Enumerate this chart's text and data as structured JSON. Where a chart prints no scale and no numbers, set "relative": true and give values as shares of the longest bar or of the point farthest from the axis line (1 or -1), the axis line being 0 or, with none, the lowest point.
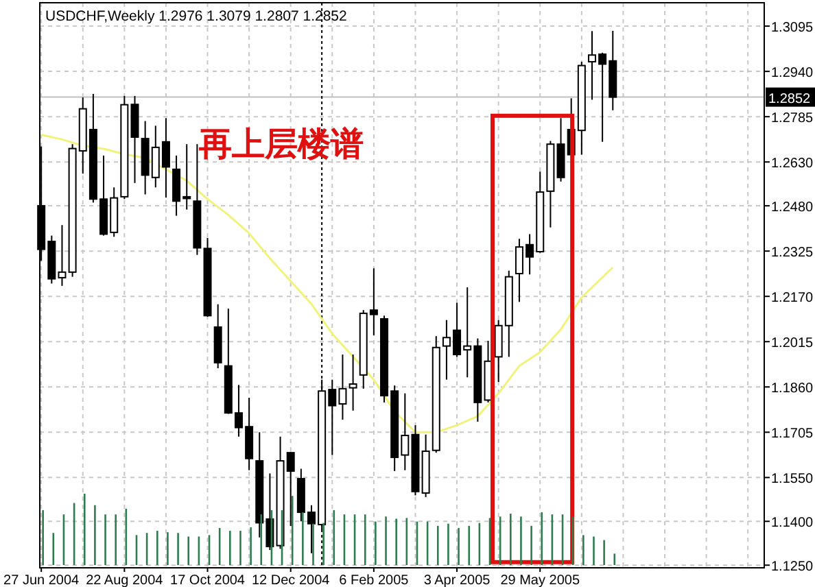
{
  "chart_data": [
    {
      "type": "candlestick",
      "title": "USDCHF,Weekly 1.2976 1.3079 1.2807 1.2852",
      "x": [
        "2004-06-27",
        "2004-07-04",
        "2004-07-11",
        "2004-07-18",
        "2004-07-25",
        "2004-08-01",
        "2004-08-08",
        "2004-08-15",
        "2004-08-22",
        "2004-08-29",
        "2004-09-05",
        "2004-09-12",
        "2004-09-19",
        "2004-09-26",
        "2004-10-03",
        "2004-10-10",
        "2004-10-17",
        "2004-10-24",
        "2004-10-31",
        "2004-11-07",
        "2004-11-14",
        "2004-11-21",
        "2004-11-28",
        "2004-12-05",
        "2004-12-12",
        "2004-12-19",
        "2004-12-26",
        "2005-01-02",
        "2005-01-09",
        "2005-01-16",
        "2005-01-23",
        "2005-01-30",
        "2005-02-06",
        "2005-02-13",
        "2005-02-20",
        "2005-02-27",
        "2005-03-06",
        "2005-03-13",
        "2005-03-20",
        "2005-03-27",
        "2005-04-03",
        "2005-04-10",
        "2005-04-17",
        "2005-04-24",
        "2005-05-01",
        "2005-05-08",
        "2005-05-15",
        "2005-05-22",
        "2005-05-29",
        "2005-06-05",
        "2005-06-12",
        "2005-06-19",
        "2005-06-26",
        "2005-07-03",
        "2005-07-10",
        "2005-07-17"
      ],
      "ohlc": [
        [
          1.248,
          1.2683,
          1.2292,
          1.2331
        ],
        [
          1.2358,
          1.2378,
          1.2214,
          1.223
        ],
        [
          1.2234,
          1.2414,
          1.2206,
          1.2253
        ],
        [
          1.2253,
          1.2691,
          1.2237,
          1.2676
        ],
        [
          1.2668,
          1.2851,
          1.259,
          1.2812
        ],
        [
          1.2741,
          1.2863,
          1.2491,
          1.2503
        ],
        [
          1.2503,
          1.2652,
          1.2378,
          1.2383
        ],
        [
          1.2389,
          1.2543,
          1.2374,
          1.2507
        ],
        [
          1.2511,
          1.2856,
          1.2503,
          1.2826
        ],
        [
          1.2827,
          1.2856,
          1.2558,
          1.2715
        ],
        [
          1.271,
          1.277,
          1.2519,
          1.2585
        ],
        [
          1.2577,
          1.2754,
          1.2543,
          1.268
        ],
        [
          1.2699,
          1.278,
          1.2508,
          1.2613
        ],
        [
          1.2605,
          1.2652,
          1.2446,
          1.2496
        ],
        [
          1.2511,
          1.2691,
          1.2467,
          1.2505
        ],
        [
          1.2496,
          1.2691,
          1.2312,
          1.2336
        ],
        [
          1.2334,
          1.237,
          1.21,
          1.2104
        ],
        [
          1.2065,
          1.2143,
          1.1924,
          1.1943
        ],
        [
          1.1932,
          1.2128,
          1.1768,
          1.1771
        ],
        [
          1.1771,
          1.1867,
          1.169,
          1.1721
        ],
        [
          1.1724,
          1.1823,
          1.1575,
          1.1615
        ],
        [
          1.1607,
          1.1705,
          1.1345,
          1.1395
        ],
        [
          1.1408,
          1.1564,
          1.1302,
          1.1314
        ],
        [
          1.1317,
          1.169,
          1.1306,
          1.1607
        ],
        [
          1.1635,
          1.1638,
          1.1384,
          1.1572
        ],
        [
          1.1546,
          1.158,
          1.14,
          1.1431
        ],
        [
          1.1431,
          1.1455,
          1.1291,
          1.1392
        ],
        [
          1.1389,
          1.1885,
          1.1369,
          1.1846
        ],
        [
          1.1851,
          1.1885,
          1.1627,
          1.1796
        ],
        [
          1.1802,
          1.1971,
          1.1748,
          1.1854
        ],
        [
          1.1857,
          1.1971,
          1.1779,
          1.187
        ],
        [
          1.1901,
          1.2123,
          1.1854,
          1.2112
        ],
        [
          1.2123,
          1.2266,
          1.2037,
          1.2108
        ],
        [
          1.2093,
          1.2104,
          1.1807,
          1.183
        ],
        [
          1.1846,
          1.1865,
          1.1572,
          1.1619
        ],
        [
          1.1627,
          1.1838,
          1.1575,
          1.1694
        ],
        [
          1.1697,
          1.1729,
          1.1489,
          1.1502
        ],
        [
          1.1497,
          1.1697,
          1.1483,
          1.164
        ],
        [
          1.1643,
          1.2034,
          1.1635,
          1.1995
        ],
        [
          1.2,
          1.2089,
          1.1885,
          1.2029
        ],
        [
          1.2054,
          1.2148,
          1.1963,
          1.1971
        ],
        [
          1.1987,
          1.2201,
          1.1893,
          1.2
        ],
        [
          1.2,
          1.2026,
          1.1741,
          1.1807
        ],
        [
          1.1815,
          1.2018,
          1.1807,
          1.1948
        ],
        [
          1.1963,
          1.2089,
          1.1877,
          1.207
        ],
        [
          1.207,
          1.2258,
          1.1963,
          1.2237
        ],
        [
          1.2248,
          1.2367,
          1.2151,
          1.2339
        ],
        [
          1.2347,
          1.2383,
          1.2245,
          1.2305
        ],
        [
          1.2323,
          1.2597,
          1.2319,
          1.2527
        ],
        [
          1.253,
          1.2702,
          1.2406,
          1.2691
        ],
        [
          1.2691,
          1.278,
          1.2563,
          1.2577
        ],
        [
          1.2741,
          1.2848,
          1.2655,
          1.2655
        ],
        [
          1.2738,
          1.2973,
          1.2655,
          1.296
        ],
        [
          1.2973,
          1.3078,
          1.2843,
          1.2996
        ],
        [
          1.2999,
          1.3004,
          1.2699,
          1.2965
        ],
        [
          1.2976,
          1.3079,
          1.2807,
          1.2852
        ]
      ],
      "series": [
        {
          "type": "line",
          "color": "#f2f27a",
          "x": [
            "2004-06-27",
            "2004-07-11",
            "2004-07-25",
            "2004-08-08",
            "2004-08-22",
            "2004-09-05",
            "2004-09-19",
            "2004-10-03",
            "2004-10-17",
            "2004-10-31",
            "2004-11-14",
            "2004-11-28",
            "2004-12-12",
            "2004-12-26",
            "2005-01-09",
            "2005-01-23",
            "2005-02-06",
            "2005-02-20",
            "2005-03-06",
            "2005-03-20",
            "2005-04-03",
            "2005-04-17",
            "2005-05-01",
            "2005-05-15",
            "2005-05-29",
            "2005-06-12",
            "2005-06-26",
            "2005-07-17"
          ],
          "values": [
            1.2723,
            1.2707,
            1.2686,
            1.2675,
            1.2657,
            1.2644,
            1.2605,
            1.2566,
            1.2503,
            1.2449,
            1.2386,
            1.23,
            1.2222,
            1.2144,
            1.2042,
            1.1964,
            1.1885,
            1.1776,
            1.1705,
            1.1705,
            1.1729,
            1.176,
            1.1838,
            1.1932,
            1.1979,
            1.2057,
            1.2167,
            1.2269
          ]
        }
      ],
      "xlim": [
        "2004-06-26",
        "2005-10-27"
      ],
      "xticks": [
        {
          "value": "2004-06-27",
          "label": "27 Jun 2004"
        },
        {
          "value": "2004-07-25",
          "label": null
        },
        {
          "value": "2004-08-22",
          "label": "22 Aug 2004"
        },
        {
          "value": "2004-09-19",
          "label": null
        },
        {
          "value": "2004-10-17",
          "label": "17 Oct 2004"
        },
        {
          "value": "2004-11-14",
          "label": null
        },
        {
          "value": "2004-12-12",
          "label": "12 Dec 2004"
        },
        {
          "value": "2005-01-09",
          "label": null
        },
        {
          "value": "2005-02-06",
          "label": "6 Feb 2005"
        },
        {
          "value": "2005-03-06",
          "label": null
        },
        {
          "value": "2005-04-03",
          "label": "3 Apr 2005"
        },
        {
          "value": "2005-05-01",
          "label": null
        },
        {
          "value": "2005-05-29",
          "label": "29 May 2005"
        },
        {
          "value": "2005-06-26",
          "label": null
        },
        {
          "value": "2005-07-24",
          "label": null
        },
        {
          "value": "2005-08-21",
          "label": null
        },
        {
          "value": "2005-09-18",
          "label": null
        },
        {
          "value": "2005-10-16",
          "label": null
        }
      ],
      "ylim": [
        1.1241,
        1.3175
      ],
      "yticks": [
        {
          "value": 1.125,
          "label": "1.1250"
        },
        {
          "value": 1.14,
          "label": "1.1400"
        },
        {
          "value": 1.155,
          "label": "1.1550"
        },
        1.1705,
        {
          "value": 1.186,
          "label": "1.1860"
        },
        1.2015,
        {
          "value": 1.217,
          "label": "1.2170"
        },
        1.2325,
        {
          "value": 1.248,
          "label": "1.2480"
        },
        {
          "value": 1.263,
          "label": "1.2630"
        },
        1.2785,
        {
          "value": 1.294,
          "label": "1.2940"
        },
        1.3095
      ],
      "grid": true,
      "ref_lines": [
        {
          "axis": "y",
          "value": 1.2852,
          "label": "1.2852",
          "color": "#c0c0c0"
        },
        {
          "axis": "x",
          "value": "2005-01-02",
          "color": "#000000",
          "line_style": "dotted"
        }
      ],
      "annotations": [
        "再上层楼谱"
      ]
    },
    {
      "type": "bar",
      "relative": true,
      "color": "#2e7d4f",
      "xlim": [
        "2004-06-26",
        "2005-10-27"
      ],
      "x": [
        "2004-06-27",
        "2004-07-04",
        "2004-07-11",
        "2004-07-18",
        "2004-07-25",
        "2004-08-01",
        "2004-08-08",
        "2004-08-15",
        "2004-08-22",
        "2004-08-29",
        "2004-09-05",
        "2004-09-12",
        "2004-09-19",
        "2004-09-26",
        "2004-10-03",
        "2004-10-10",
        "2004-10-17",
        "2004-10-24",
        "2004-10-31",
        "2004-11-07",
        "2004-11-14",
        "2004-11-21",
        "2004-11-28",
        "2004-12-05",
        "2004-12-12",
        "2004-12-19",
        "2004-12-26",
        "2005-01-02",
        "2005-01-09",
        "2005-01-16",
        "2005-01-23",
        "2005-01-30",
        "2005-02-06",
        "2005-02-13",
        "2005-02-20",
        "2005-02-27",
        "2005-03-06",
        "2005-03-13",
        "2005-03-20",
        "2005-03-27",
        "2005-04-03",
        "2005-04-10",
        "2005-04-17",
        "2005-04-24",
        "2005-05-01",
        "2005-05-08",
        "2005-05-15",
        "2005-05-22",
        "2005-05-29",
        "2005-06-05",
        "2005-06-12",
        "2005-06-19",
        "2005-06-26",
        "2005-07-03",
        "2005-07-10",
        "2005-07-17"
      ],
      "values": [
        0.77,
        0.45,
        0.71,
        0.87,
        1,
        0.84,
        0.71,
        0.71,
        0.79,
        0.42,
        0.45,
        0.48,
        0.46,
        0.45,
        0.4,
        0.4,
        0.42,
        0.52,
        0.48,
        0.48,
        0.53,
        0.71,
        0.77,
        0.77,
        0.97,
        0.74,
        0.58,
        0.59,
        0.77,
        0.71,
        0.71,
        0.71,
        0.61,
        0.68,
        0.65,
        0.66,
        0.61,
        0.61,
        0.55,
        0.58,
        0.52,
        0.55,
        0.59,
        0.66,
        0.68,
        0.72,
        0.68,
        0.55,
        0.74,
        0.71,
        0.71,
        0.68,
        0.42,
        0.4,
        0.35,
        0.16
      ]
    }
  ]
}
